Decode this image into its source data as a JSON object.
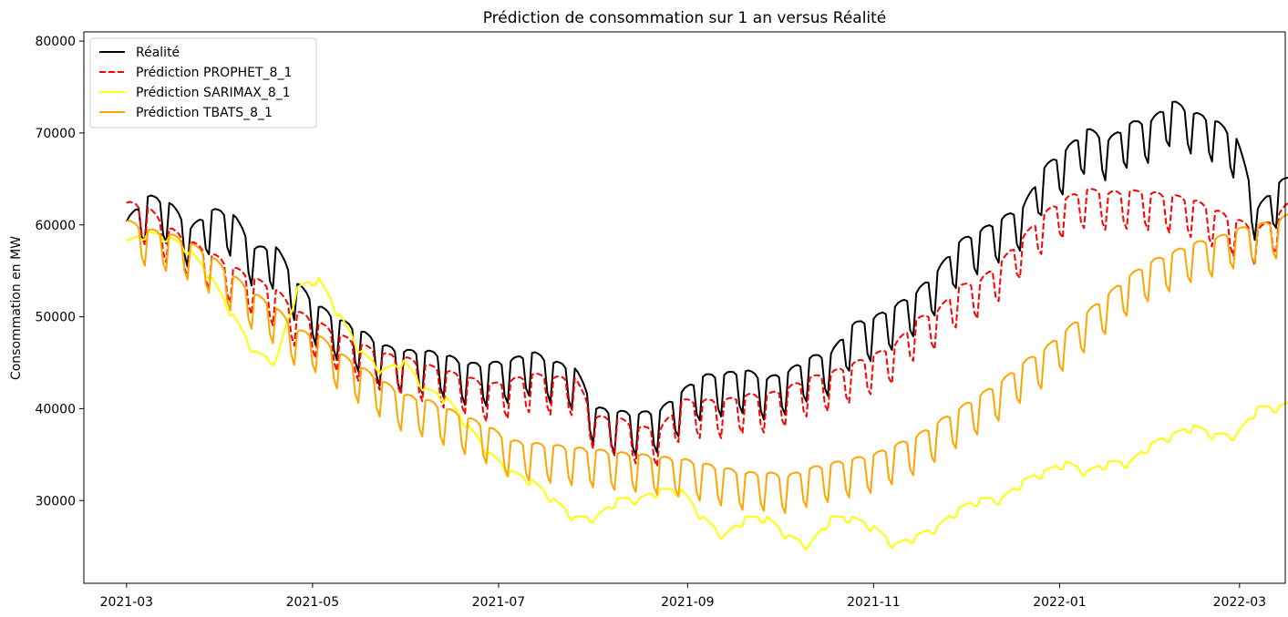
{
  "chart_data": {
    "type": "line",
    "title": "Prédiction de consommation sur 1 an versus Réalité",
    "xlabel": "",
    "ylabel": "Consommation en MW",
    "x_range": [
      "2021-02-15",
      "2022-03-16"
    ],
    "ylim": [
      21000,
      81000
    ],
    "x_ticks": [
      "2021-03",
      "2021-05",
      "2021-07",
      "2021-09",
      "2021-11",
      "2022-01",
      "2022-03"
    ],
    "y_ticks": [
      30000,
      40000,
      50000,
      60000,
      70000,
      80000
    ],
    "y_tick_labels": [
      "30000",
      "40000",
      "50000",
      "60000",
      "70000",
      "80000"
    ],
    "grid": false,
    "legend_position": "upper left",
    "series": [
      {
        "name": "Réalité",
        "color": "#000000",
        "dash": "solid",
        "start": "2021-03-01",
        "step_days": 7,
        "weekday_amplitude": 4500,
        "values": [
          58800,
          61500,
          60800,
          58000,
          60000,
          59500,
          55800,
          56000,
          52000,
          49500,
          48000,
          46800,
          45200,
          44600,
          44600,
          44100,
          43200,
          43200,
          43600,
          44500,
          43400,
          42800,
          38400,
          38000,
          37800,
          38200,
          40200,
          41900,
          42100,
          42500,
          41600,
          42400,
          43900,
          44400,
          47500,
          48200,
          49500,
          51000,
          53400,
          56500,
          57700,
          59000,
          60300,
          64600,
          66500,
          68800,
          67600,
          69400,
          69700,
          71800,
          70500,
          69700,
          67800,
          60200,
          63000,
          64000,
          72000,
          73500,
          74400,
          73200,
          66100,
          63400,
          62200,
          62200
        ]
      },
      {
        "name": "Prédiction PROPHET_8_1",
        "color": "#ff0000",
        "dash": "dashed",
        "start": "2021-03-01",
        "step_days": 7,
        "weekday_amplitude": 4000,
        "values": [
          61000,
          60400,
          58200,
          56700,
          55400,
          53900,
          52700,
          51500,
          49100,
          47900,
          46500,
          45500,
          44500,
          44100,
          43300,
          42600,
          41900,
          41100,
          41600,
          42300,
          41900,
          41900,
          37600,
          37500,
          36500,
          36300,
          39400,
          39400,
          39400,
          40000,
          40000,
          40800,
          41900,
          42400,
          43400,
          44300,
          45500,
          48200,
          49200,
          51800,
          52500,
          54600,
          57200,
          59800,
          61400,
          62400,
          62000,
          62200,
          62000,
          61700,
          61200,
          60100,
          59100,
          58000,
          59800,
          62300,
          63300,
          65400,
          66600,
          66100,
          65000,
          64700,
          63400,
          61800
        ]
      },
      {
        "name": "Prédiction SARIMAX_8_1",
        "color": "#ffff00",
        "dash": "solid",
        "start": "2021-03-01",
        "step_days": 7,
        "weekday_amplitude": 700,
        "values": [
          58000,
          59000,
          58500,
          57000,
          54000,
          50000,
          46000,
          45000,
          53000,
          54000,
          50000,
          46000,
          44000,
          45000,
          42000,
          41000,
          38000,
          35000,
          33000,
          32000,
          30000,
          28000,
          28000,
          30000,
          30000,
          31000,
          31000,
          28000,
          26000,
          28000,
          28000,
          26000,
          25000,
          28000,
          28000,
          27000,
          25000,
          26000,
          27000,
          29000,
          30000,
          30000,
          32000,
          33000,
          34000,
          33000,
          34000,
          34000,
          36000,
          37000,
          38000,
          37000,
          37000,
          40000,
          40000,
          41000,
          40000,
          39000,
          40000,
          44000,
          38000,
          34000,
          32000,
          38000
        ]
      },
      {
        "name": "Prédiction TBATS_8_1",
        "color": "#ffa500",
        "dash": "solid",
        "start": "2021-03-01",
        "step_days": 7,
        "weekday_amplitude": 4000,
        "values": [
          59000,
          58000,
          57500,
          56500,
          55000,
          53000,
          51000,
          49500,
          47000,
          46500,
          44500,
          43000,
          41500,
          40000,
          39500,
          38500,
          37500,
          36500,
          35000,
          34700,
          34500,
          34200,
          34000,
          33700,
          33500,
          33200,
          33000,
          32500,
          32000,
          31500,
          31500,
          31200,
          32000,
          32500,
          33000,
          33500,
          34500,
          35500,
          37000,
          38500,
          40000,
          41500,
          43500,
          45000,
          47000,
          49000,
          51000,
          53000,
          54500,
          55500,
          56500,
          57000,
          58000,
          58500,
          59000,
          60500,
          62000,
          63000,
          64000,
          63500,
          62500,
          62000,
          61500,
          60500
        ]
      }
    ]
  }
}
